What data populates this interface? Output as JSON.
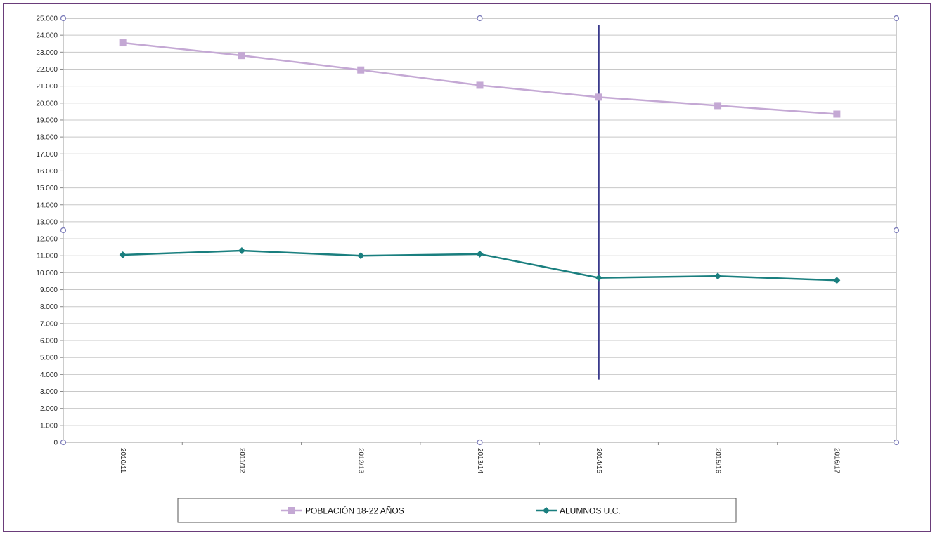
{
  "chart_data": {
    "type": "line",
    "categories": [
      "2010/11",
      "2011/12",
      "2012/13",
      "2013/14",
      "2014/15",
      "2015/16",
      "2016/17"
    ],
    "series": [
      {
        "name": "POBLACIÓN 18-22 AÑOS",
        "values": [
          23550,
          22800,
          21950,
          21050,
          20350,
          19850,
          19350
        ],
        "color": "#c4a8d4",
        "marker": "square"
      },
      {
        "name": "ALUMNOS U.C.",
        "values": [
          11050,
          11300,
          11000,
          11100,
          9700,
          9800,
          9550
        ],
        "color": "#1a7f7f",
        "marker": "diamond"
      }
    ],
    "ylim": [
      0,
      25000
    ],
    "y_ticks": [
      "0",
      "1.000",
      "2.000",
      "3.000",
      "4.000",
      "5.000",
      "6.000",
      "7.000",
      "8.000",
      "9.000",
      "10.000",
      "11.000",
      "12.000",
      "13.000",
      "14.000",
      "15.000",
      "16.000",
      "17.000",
      "18.000",
      "19.000",
      "20.000",
      "21.000",
      "22.000",
      "23.000",
      "24.000",
      "25.000"
    ],
    "grid": true,
    "legend_position": "bottom",
    "vertical_marker": {
      "at_category": "2014/15",
      "from": 3700,
      "to": 24600,
      "color": "#3a3a8c"
    }
  }
}
